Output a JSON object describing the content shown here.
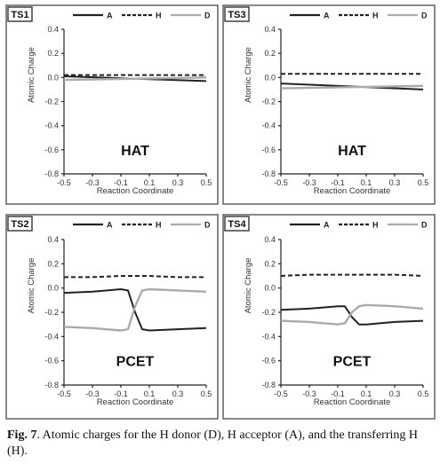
{
  "chart_data": [
    {
      "type": "line",
      "panel": "TS1",
      "annotation": "HAT",
      "xlabel": "Reaction Coordinate",
      "ylabel": "Atomic Charge",
      "xlim": [
        -0.5,
        0.5
      ],
      "ylim": [
        -0.8,
        0.4
      ],
      "xticks": [
        "-0.5",
        "-0.3",
        "-0.1",
        "0.1",
        "0.3",
        "0.5"
      ],
      "yticks": [
        "0.4",
        "0.2",
        "0.0",
        "-0.2",
        "-0.4",
        "-0.6",
        "-0.8"
      ],
      "legend_position": "top",
      "series": [
        {
          "name": "A",
          "style": "solid",
          "color": "#222222",
          "x": [
            -0.5,
            0.5
          ],
          "y": [
            0.01,
            -0.03
          ]
        },
        {
          "name": "H",
          "style": "dashed",
          "color": "#222222",
          "x": [
            -0.5,
            0.5
          ],
          "y": [
            0.02,
            0.02
          ]
        },
        {
          "name": "D",
          "style": "solid",
          "color": "#aaaaaa",
          "x": [
            -0.5,
            0.5
          ],
          "y": [
            -0.02,
            0.0
          ]
        }
      ]
    },
    {
      "type": "line",
      "panel": "TS3",
      "annotation": "HAT",
      "xlabel": "Reaction Coordinate",
      "ylabel": "Atomic Charge",
      "xlim": [
        -0.5,
        0.5
      ],
      "ylim": [
        -0.8,
        0.4
      ],
      "xticks": [
        "-0.5",
        "-0.3",
        "-0.1",
        "0.1",
        "0.3",
        "0.5"
      ],
      "yticks": [
        "0.4",
        "0.2",
        "0.0",
        "-0.2",
        "-0.4",
        "-0.6",
        "-0.8"
      ],
      "legend_position": "top",
      "series": [
        {
          "name": "A",
          "style": "solid",
          "color": "#222222",
          "x": [
            -0.5,
            0.5
          ],
          "y": [
            -0.05,
            -0.1
          ]
        },
        {
          "name": "H",
          "style": "dashed",
          "color": "#222222",
          "x": [
            -0.5,
            0.5
          ],
          "y": [
            0.03,
            0.03
          ]
        },
        {
          "name": "D",
          "style": "solid",
          "color": "#aaaaaa",
          "x": [
            -0.5,
            0.5
          ],
          "y": [
            -0.09,
            -0.07
          ]
        }
      ]
    },
    {
      "type": "line",
      "panel": "TS2",
      "annotation": "PCET",
      "xlabel": "Reaction Coordinate",
      "ylabel": "Atomic Charge",
      "xlim": [
        -0.5,
        0.5
      ],
      "ylim": [
        -0.8,
        0.4
      ],
      "xticks": [
        "-0.5",
        "-0.3",
        "-0.1",
        "0.1",
        "0.3",
        "0.5"
      ],
      "yticks": [
        "0.4",
        "0.2",
        "0.0",
        "-0.2",
        "-0.4",
        "-0.6",
        "-0.8"
      ],
      "legend_position": "top",
      "series": [
        {
          "name": "A",
          "style": "solid",
          "color": "#222222",
          "x": [
            -0.5,
            -0.3,
            -0.1,
            -0.05,
            0.0,
            0.05,
            0.1,
            0.3,
            0.5
          ],
          "y": [
            -0.04,
            -0.03,
            -0.01,
            -0.02,
            -0.2,
            -0.34,
            -0.35,
            -0.34,
            -0.33
          ]
        },
        {
          "name": "H",
          "style": "dashed",
          "color": "#222222",
          "x": [
            -0.5,
            -0.3,
            -0.1,
            0.1,
            0.3,
            0.5
          ],
          "y": [
            0.09,
            0.09,
            0.1,
            0.1,
            0.09,
            0.09
          ]
        },
        {
          "name": "D",
          "style": "solid",
          "color": "#aaaaaa",
          "x": [
            -0.5,
            -0.3,
            -0.1,
            -0.05,
            0.0,
            0.05,
            0.1,
            0.3,
            0.5
          ],
          "y": [
            -0.32,
            -0.33,
            -0.35,
            -0.34,
            -0.15,
            -0.02,
            -0.01,
            -0.02,
            -0.03
          ]
        }
      ]
    },
    {
      "type": "line",
      "panel": "TS4",
      "annotation": "PCET",
      "xlabel": "Reaction Coordinate",
      "ylabel": "Atomic Charge",
      "xlim": [
        -0.5,
        0.5
      ],
      "ylim": [
        -0.8,
        0.4
      ],
      "xticks": [
        "-0.5",
        "-0.3",
        "-0.1",
        "0.1",
        "0.3",
        "0.5"
      ],
      "yticks": [
        "0.4",
        "0.2",
        "0.0",
        "-0.2",
        "-0.4",
        "-0.6",
        "-0.8"
      ],
      "legend_position": "top",
      "series": [
        {
          "name": "A",
          "style": "solid",
          "color": "#222222",
          "x": [
            -0.5,
            -0.3,
            -0.1,
            -0.05,
            0.0,
            0.05,
            0.1,
            0.3,
            0.5
          ],
          "y": [
            -0.18,
            -0.17,
            -0.15,
            -0.15,
            -0.24,
            -0.3,
            -0.3,
            -0.28,
            -0.27
          ]
        },
        {
          "name": "H",
          "style": "dashed",
          "color": "#222222",
          "x": [
            -0.5,
            -0.3,
            -0.1,
            0.1,
            0.3,
            0.5
          ],
          "y": [
            0.1,
            0.11,
            0.11,
            0.11,
            0.11,
            0.1
          ]
        },
        {
          "name": "D",
          "style": "solid",
          "color": "#aaaaaa",
          "x": [
            -0.5,
            -0.3,
            -0.1,
            -0.05,
            0.0,
            0.05,
            0.1,
            0.3,
            0.5
          ],
          "y": [
            -0.27,
            -0.28,
            -0.3,
            -0.29,
            -0.2,
            -0.15,
            -0.14,
            -0.15,
            -0.17
          ]
        }
      ]
    }
  ],
  "caption": {
    "label": "Fig. 7",
    "text": ". Atomic charges for the H donor (D), H acceptor (A), and the transferring H (H)."
  }
}
